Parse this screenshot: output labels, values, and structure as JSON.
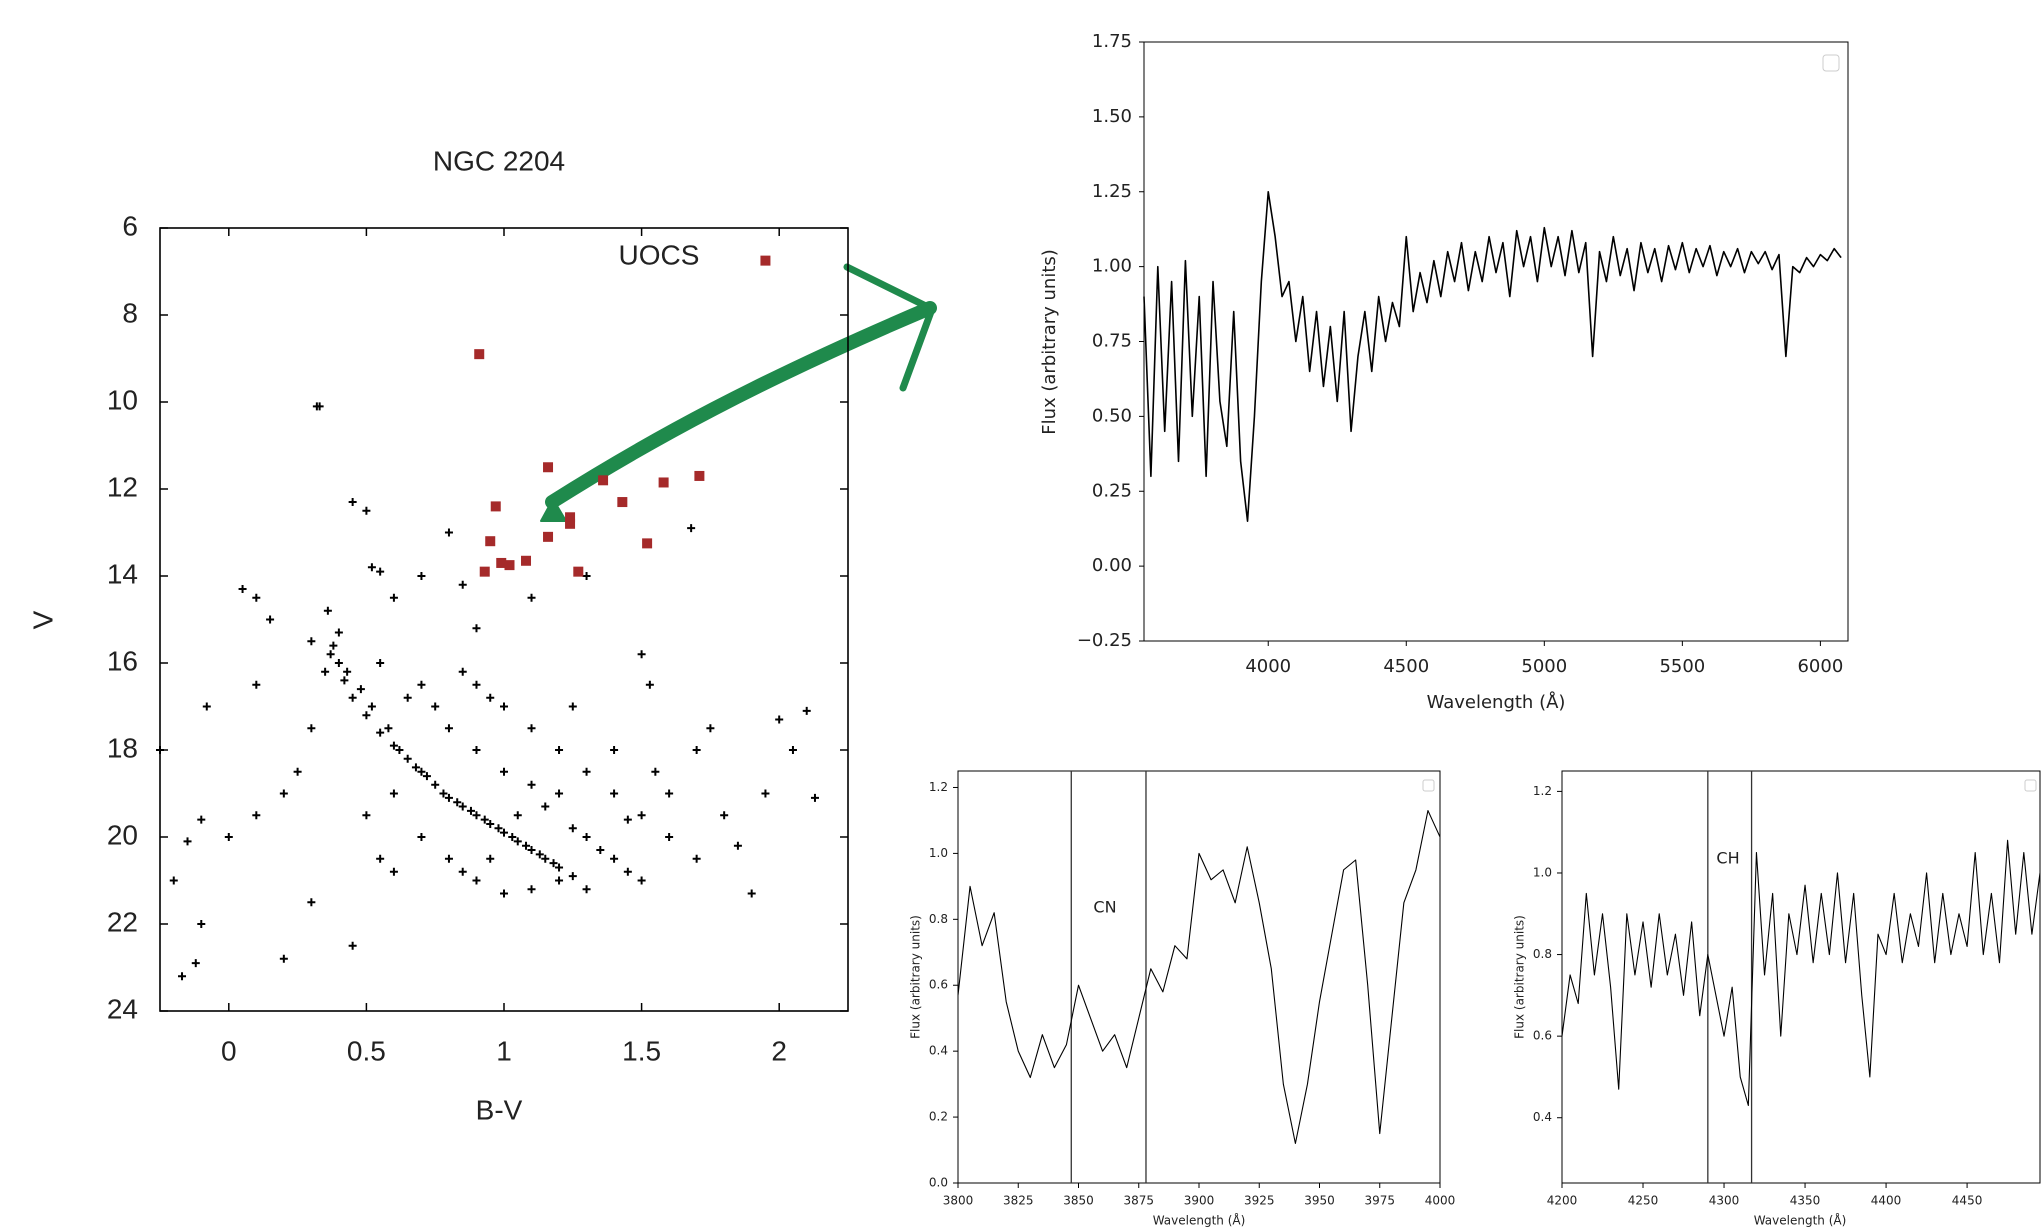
{
  "chart_data": [
    {
      "type": "scatter",
      "title": "NGC 2204",
      "xlabel": "B-V",
      "ylabel": "V",
      "annotation": "UOCS",
      "xlim": [
        -0.25,
        2.25
      ],
      "ylim": [
        24,
        6
      ],
      "xticks": [
        0,
        0.5,
        1,
        1.5,
        2
      ],
      "yticks": [
        6,
        8,
        10,
        12,
        14,
        16,
        18,
        20,
        22,
        24
      ],
      "series": [
        {
          "color": "#000000",
          "marker": "plus",
          "x": [
            0.38,
            0.4,
            0.42,
            0.45,
            0.5,
            0.55,
            0.6,
            0.65,
            0.7,
            0.75,
            0.8,
            0.85,
            0.9,
            0.95,
            1.0,
            1.05,
            1.1,
            1.15,
            1.2,
            1.25,
            0.4,
            0.37,
            0.43,
            0.48,
            0.52,
            0.58,
            0.62,
            0.68,
            0.72,
            0.78,
            0.83,
            0.88,
            0.93,
            0.98,
            1.03,
            1.08,
            1.13,
            1.18,
            0.55,
            0.7,
            0.9,
            1.0,
            1.1,
            1.2,
            1.3,
            1.4,
            1.5,
            1.6,
            1.7,
            0.6,
            0.7,
            0.8,
            0.9,
            1.0,
            1.3,
            1.4,
            1.5,
            1.6,
            1.7,
            0.5,
            0.55,
            0.3,
            0.25,
            0.2,
            0.1,
            0,
            -0.1,
            -0.15,
            -0.2,
            -0.1,
            -0.17,
            -0.12,
            0.2,
            0.3,
            0.45,
            -0.25,
            -0.08,
            0.1,
            0.15,
            0.1,
            0.05,
            0.33,
            0.32,
            0.45,
            0.5,
            0.52,
            0.55,
            0.6,
            0.7,
            0.8,
            0.85,
            0.9,
            1.1,
            1.3,
            1.5,
            1.53,
            1.75,
            1.8,
            1.9,
            2.0,
            2.05,
            2.1,
            2.13,
            1.85,
            1.95,
            1.68,
            0.36,
            0.3,
            0.35,
            1.2,
            1.1,
            1.0,
            0.9,
            0.8,
            0.75,
            0.65,
            1.05,
            1.15,
            1.25,
            1.35,
            1.45,
            1.2,
            1.1,
            1.3,
            0.95,
            0.85,
            0.6,
            1.45,
            1.55,
            1.4,
            1.25,
            0.95,
            0.85
          ],
          "values": [
            15.6,
            16.0,
            16.4,
            16.8,
            17.2,
            17.6,
            17.9,
            18.2,
            18.5,
            18.8,
            19.1,
            19.3,
            19.5,
            19.7,
            19.9,
            20.1,
            20.3,
            20.5,
            20.7,
            20.9,
            15.3,
            15.8,
            16.2,
            16.6,
            17.0,
            17.5,
            18.0,
            18.4,
            18.6,
            19.0,
            19.2,
            19.4,
            19.6,
            19.8,
            20.0,
            20.2,
            20.4,
            20.6,
            16.0,
            16.5,
            16.5,
            17.0,
            17.5,
            18.0,
            18.5,
            19.0,
            19.5,
            20.0,
            20.5,
            19.0,
            20.0,
            20.5,
            21.0,
            21.3,
            20.0,
            20.5,
            21.0,
            19.0,
            18.0,
            19.5,
            20.5,
            17.5,
            18.5,
            19.0,
            19.5,
            20.0,
            19.6,
            20.1,
            21.0,
            22.0,
            23.2,
            22.9,
            22.8,
            21.5,
            22.5,
            18.0,
            17.0,
            16.5,
            15.0,
            14.5,
            14.3,
            10.1,
            10.1,
            12.3,
            12.5,
            13.8,
            13.9,
            14.5,
            14.0,
            13.0,
            14.2,
            15.2,
            14.5,
            14.0,
            15.8,
            16.5,
            17.5,
            19.5,
            21.3,
            17.3,
            18.0,
            17.1,
            19.1,
            20.2,
            19.0,
            12.9,
            14.8,
            15.5,
            16.2,
            19.0,
            18.8,
            18.5,
            18.0,
            17.5,
            17.0,
            16.8,
            19.5,
            19.3,
            19.8,
            20.3,
            20.8,
            21.0,
            21.2,
            21.2,
            20.5,
            20.8,
            20.8,
            19.6,
            18.5,
            18.0,
            17.0,
            16.8,
            16.2
          ]
        },
        {
          "color": "#a52a2a",
          "marker": "square",
          "x": [
            1.95,
            0.91,
            1.16,
            0.97,
            1.36,
            1.43,
            1.58,
            1.71,
            1.24,
            1.24,
            1.52,
            0.95,
            1.16,
            0.93,
            0.99,
            1.02,
            1.08,
            1.27
          ],
          "values": [
            6.75,
            8.9,
            11.5,
            12.4,
            11.8,
            12.3,
            11.85,
            11.7,
            12.65,
            12.8,
            13.25,
            13.2,
            13.1,
            13.9,
            13.7,
            13.75,
            13.65,
            13.9
          ]
        }
      ]
    },
    {
      "type": "line",
      "xlabel": "Wavelength (Å)",
      "ylabel": "Flux (arbitrary units)",
      "xlim": [
        3550,
        6100
      ],
      "ylim": [
        -0.25,
        1.75
      ],
      "xticks": [
        4000,
        4500,
        5000,
        5500,
        6000
      ],
      "yticks": [
        {
          "value": -0.25,
          "label": "−0.25"
        },
        {
          "value": 0,
          "label": "0.00"
        },
        0.25,
        {
          "value": 0.5,
          "label": "0.50"
        },
        0.75,
        {
          "value": 1,
          "label": "1.00"
        },
        1.25,
        {
          "value": 1.5,
          "label": "1.50"
        },
        1.75
      ],
      "series": [
        {
          "color": "#000000",
          "x": [
            3550,
            3575,
            3600,
            3625,
            3650,
            3675,
            3700,
            3725,
            3750,
            3775,
            3800,
            3825,
            3850,
            3875,
            3900,
            3925,
            3950,
            3975,
            4000,
            4025,
            4050,
            4075,
            4100,
            4125,
            4150,
            4175,
            4200,
            4225,
            4250,
            4275,
            4300,
            4325,
            4350,
            4375,
            4400,
            4425,
            4450,
            4475,
            4500,
            4525,
            4550,
            4575,
            4600,
            4625,
            4650,
            4675,
            4700,
            4725,
            4750,
            4775,
            4800,
            4825,
            4850,
            4875,
            4900,
            4925,
            4950,
            4975,
            5000,
            5025,
            5050,
            5075,
            5100,
            5125,
            5150,
            5175,
            5200,
            5225,
            5250,
            5275,
            5300,
            5325,
            5350,
            5375,
            5400,
            5425,
            5450,
            5475,
            5500,
            5525,
            5550,
            5575,
            5600,
            5625,
            5650,
            5675,
            5700,
            5725,
            5750,
            5775,
            5800,
            5825,
            5850,
            5875,
            5900,
            5925,
            5950,
            5975,
            6000,
            6025,
            6050,
            6075
          ],
          "values": [
            0.9,
            0.3,
            1.0,
            0.45,
            0.95,
            0.35,
            1.02,
            0.5,
            0.9,
            0.3,
            0.95,
            0.55,
            0.4,
            0.85,
            0.35,
            0.15,
            0.5,
            0.95,
            1.25,
            1.1,
            0.9,
            0.95,
            0.75,
            0.9,
            0.65,
            0.85,
            0.6,
            0.8,
            0.55,
            0.85,
            0.45,
            0.7,
            0.85,
            0.65,
            0.9,
            0.75,
            0.88,
            0.8,
            1.1,
            0.85,
            0.98,
            0.88,
            1.02,
            0.9,
            1.05,
            0.95,
            1.08,
            0.92,
            1.05,
            0.95,
            1.1,
            0.98,
            1.08,
            0.9,
            1.12,
            1.0,
            1.1,
            0.95,
            1.13,
            1.0,
            1.1,
            0.97,
            1.12,
            0.98,
            1.08,
            0.7,
            1.05,
            0.95,
            1.1,
            0.97,
            1.06,
            0.92,
            1.08,
            0.98,
            1.06,
            0.95,
            1.07,
            0.99,
            1.08,
            0.98,
            1.06,
            1.0,
            1.07,
            0.97,
            1.05,
            1.0,
            1.06,
            0.98,
            1.05,
            1.01,
            1.05,
            0.99,
            1.04,
            0.7,
            1.0,
            0.98,
            1.03,
            1.0,
            1.04,
            1.02,
            1.06,
            1.03
          ]
        }
      ]
    },
    {
      "type": "line",
      "xlabel": "Wavelength (Å)",
      "ylabel": "Flux (arbitrary units)",
      "annotation": "CN",
      "xlim": [
        3800,
        4000
      ],
      "ylim": [
        0,
        1.25
      ],
      "xticks": [
        3800,
        3825,
        3850,
        3875,
        3900,
        3925,
        3950,
        3975,
        4000
      ],
      "yticks": [
        {
          "value": 0,
          "label": "0.0"
        },
        0.2,
        0.4,
        0.6,
        0.8,
        {
          "value": 1,
          "label": "1.0"
        },
        1.2
      ],
      "vlines": [
        3847,
        3878
      ],
      "series": [
        {
          "color": "#000000",
          "x": [
            3800,
            3805,
            3810,
            3815,
            3820,
            3825,
            3830,
            3835,
            3840,
            3845,
            3850,
            3855,
            3860,
            3865,
            3870,
            3875,
            3880,
            3885,
            3890,
            3895,
            3900,
            3905,
            3910,
            3915,
            3920,
            3925,
            3930,
            3935,
            3940,
            3945,
            3950,
            3955,
            3960,
            3965,
            3970,
            3975,
            3980,
            3985,
            3990,
            3995,
            4000
          ],
          "values": [
            0.57,
            0.9,
            0.72,
            0.82,
            0.55,
            0.4,
            0.32,
            0.45,
            0.35,
            0.42,
            0.6,
            0.5,
            0.4,
            0.45,
            0.35,
            0.5,
            0.65,
            0.58,
            0.72,
            0.68,
            1.0,
            0.92,
            0.95,
            0.85,
            1.02,
            0.85,
            0.65,
            0.3,
            0.12,
            0.3,
            0.55,
            0.75,
            0.95,
            0.98,
            0.6,
            0.15,
            0.5,
            0.85,
            0.95,
            1.13,
            1.05
          ]
        }
      ]
    },
    {
      "type": "line",
      "xlabel": "Wavelength (Å)",
      "ylabel": "Flux (arbitrary units)",
      "annotation": "CH",
      "xlim": [
        4200,
        4495
      ],
      "ylim": [
        0.24,
        1.25
      ],
      "xticks": [
        4200,
        4250,
        4300,
        4350,
        4400,
        4450
      ],
      "yticks": [
        0.4,
        0.6,
        0.8,
        {
          "value": 1,
          "label": "1.0"
        },
        1.2
      ],
      "vlines": [
        4290,
        4317
      ],
      "series": [
        {
          "color": "#000000",
          "x": [
            4200,
            4205,
            4210,
            4215,
            4220,
            4225,
            4230,
            4235,
            4240,
            4245,
            4250,
            4255,
            4260,
            4265,
            4270,
            4275,
            4280,
            4285,
            4290,
            4295,
            4300,
            4305,
            4310,
            4315,
            4320,
            4325,
            4330,
            4335,
            4340,
            4345,
            4350,
            4355,
            4360,
            4365,
            4370,
            4375,
            4380,
            4385,
            4390,
            4395,
            4400,
            4405,
            4410,
            4415,
            4420,
            4425,
            4430,
            4435,
            4440,
            4445,
            4450,
            4455,
            4460,
            4465,
            4470,
            4475,
            4480,
            4485,
            4490,
            4495
          ],
          "values": [
            0.6,
            0.75,
            0.68,
            0.95,
            0.75,
            0.9,
            0.72,
            0.47,
            0.9,
            0.75,
            0.88,
            0.72,
            0.9,
            0.75,
            0.85,
            0.7,
            0.88,
            0.65,
            0.8,
            0.7,
            0.6,
            0.72,
            0.5,
            0.43,
            1.05,
            0.75,
            0.95,
            0.6,
            0.9,
            0.8,
            0.97,
            0.78,
            0.95,
            0.8,
            1.0,
            0.78,
            0.95,
            0.7,
            0.5,
            0.85,
            0.8,
            0.95,
            0.78,
            0.9,
            0.82,
            1.0,
            0.78,
            0.95,
            0.8,
            0.9,
            0.82,
            1.05,
            0.8,
            0.95,
            0.78,
            1.08,
            0.85,
            1.05,
            0.85,
            1.0
          ]
        }
      ]
    }
  ]
}
